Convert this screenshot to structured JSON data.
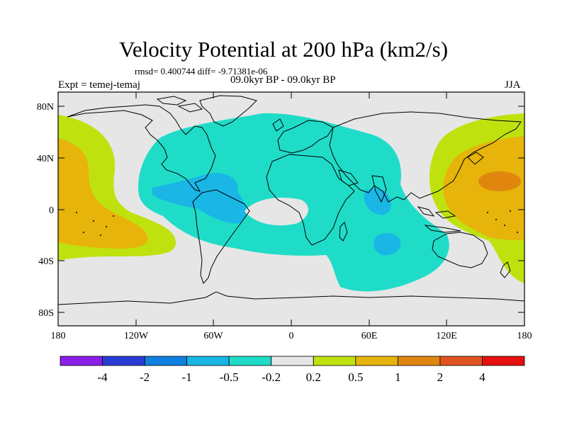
{
  "title": "Velocity Potential at 200 hPa (km2/s)",
  "stats": "rmsd= 0.400744 diff= -9.71381e-06",
  "experiment": "Expt = temej-temaj",
  "period": "09.0kyr BP - 09.0kyr BP",
  "season": "JJA",
  "lat_labels": [
    "80N",
    "40N",
    "0",
    "40S",
    "80S"
  ],
  "lon_labels": [
    "180",
    "120W",
    "60W",
    "0",
    "60E",
    "120E",
    "180"
  ],
  "colorbar": {
    "colors": [
      "#8a1ee6",
      "#2a3cd6",
      "#0f7fe0",
      "#19b6e6",
      "#1fdcc8",
      "#e6e6e6",
      "#bfe20f",
      "#e6b40a",
      "#e0860f",
      "#e0521e",
      "#e60f0f"
    ],
    "labels": [
      "-4",
      "-2",
      "-1",
      "-0.5",
      "-0.2",
      "0.2",
      "0.5",
      "1",
      "2",
      "4"
    ]
  },
  "colors": {
    "ocean_bg": "#e6e6e6",
    "teal": "#1fdcc8",
    "blue": "#19b6e6",
    "green": "#bfe20f",
    "orange": "#e6b40a",
    "dark_orange": "#e0860f"
  }
}
